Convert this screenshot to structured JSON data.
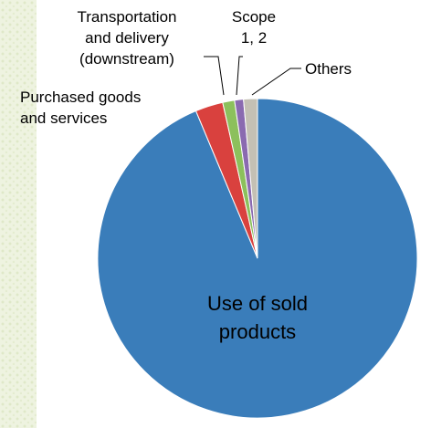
{
  "chart_data": {
    "type": "pie",
    "categories": [
      "Use of sold products",
      "Purchased goods and services",
      "Transportation and delivery (downstream)",
      "Scope 1, 2",
      "Others"
    ],
    "values": [
      93.7,
      2.8,
      1.2,
      0.9,
      1.4
    ],
    "colors": [
      "#3a7dba",
      "#d9413e",
      "#8cc05c",
      "#8a6ab0",
      "#c4c0b4"
    ],
    "slice_labels": [
      [
        "Use of sold",
        "products"
      ],
      [
        "Purchased goods",
        "and services"
      ],
      [
        "Transportation",
        "and delivery",
        "(downstream)"
      ],
      [
        "Scope",
        "1, 2"
      ],
      [
        "Others"
      ]
    ],
    "title": "",
    "legend": "none"
  }
}
